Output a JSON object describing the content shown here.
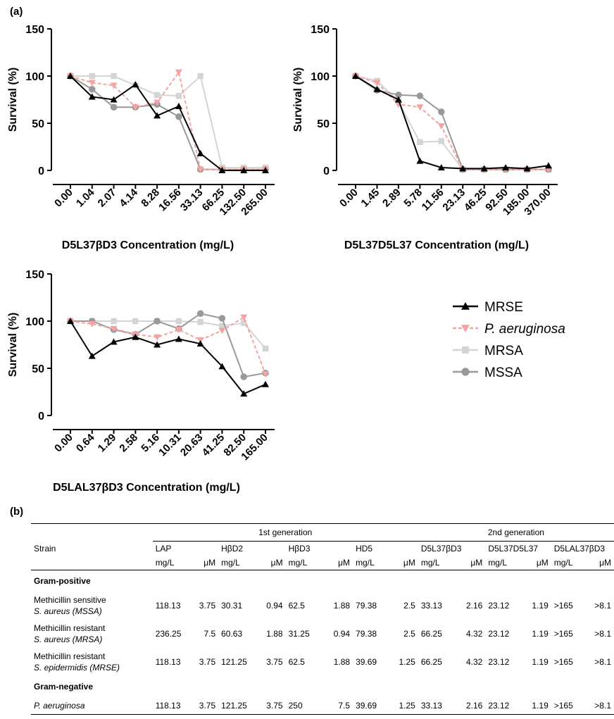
{
  "panel_labels": {
    "a": "(a)",
    "b": "(b)"
  },
  "colors": {
    "MRSE": "#000000",
    "P_aeruginosa": "#f4a3a3",
    "MRSA": "#d4d4d4",
    "MSSA": "#999999"
  },
  "legend": [
    {
      "name": "MRSE",
      "italic": false,
      "marker": "triangle-up",
      "color": "#000000",
      "dash": false
    },
    {
      "name": "P. aeruginosa",
      "italic": true,
      "marker": "triangle-down",
      "color": "#f4a3a3",
      "dash": true
    },
    {
      "name": "MRSA",
      "italic": false,
      "marker": "square",
      "color": "#d4d4d4",
      "dash": false
    },
    {
      "name": "MSSA",
      "italic": false,
      "marker": "circle",
      "color": "#999999",
      "dash": false
    }
  ],
  "chart_data": [
    {
      "type": "line",
      "xlabel": "D5L37βD3 Concentration (mg/L)",
      "ylabel": "Survival (%)",
      "ylim": [
        0,
        150
      ],
      "yticks": [
        "0",
        "50",
        "100",
        "150"
      ],
      "categories": [
        "0.00",
        "1.04",
        "2.07",
        "4.14",
        "8.28",
        "16.56",
        "33.13",
        "66.25",
        "132.50",
        "265.00"
      ],
      "series": [
        {
          "name": "MRSE",
          "values": [
            100,
            78,
            75,
            91,
            58,
            68,
            18,
            0,
            0,
            0
          ]
        },
        {
          "name": "P. aeruginosa",
          "values": [
            100,
            93,
            90,
            67,
            72,
            104,
            1,
            1,
            1,
            1
          ]
        },
        {
          "name": "MRSA",
          "values": [
            100,
            100,
            100,
            90,
            80,
            79,
            100,
            3,
            3,
            3
          ]
        },
        {
          "name": "MSSA",
          "values": [
            100,
            86,
            67,
            67,
            70,
            57,
            1,
            1,
            1,
            1
          ]
        }
      ]
    },
    {
      "type": "line",
      "xlabel": "D5L37D5L37 Concentration (mg/L)",
      "ylabel": "Survival (%)",
      "ylim": [
        0,
        150
      ],
      "yticks": [
        "0",
        "50",
        "100",
        "150"
      ],
      "categories": [
        "0.00",
        "1.45",
        "2.89",
        "5.78",
        "11.56",
        "23.13",
        "46.25",
        "92.50",
        "185.00",
        "370.00"
      ],
      "series": [
        {
          "name": "MRSE",
          "values": [
            100,
            86,
            75,
            10,
            3,
            2,
            2,
            3,
            2,
            5
          ]
        },
        {
          "name": "P. aeruginosa",
          "values": [
            100,
            93,
            70,
            67,
            47,
            1,
            1,
            1,
            1,
            1
          ]
        },
        {
          "name": "MRSA",
          "values": [
            100,
            95,
            73,
            30,
            31,
            1,
            1,
            1,
            1,
            1
          ]
        },
        {
          "name": "MSSA",
          "values": [
            100,
            85,
            80,
            79,
            62,
            1,
            1,
            1,
            1,
            1
          ]
        }
      ]
    },
    {
      "type": "line",
      "xlabel": "D5LAL37βD3 Concentration (mg/L)",
      "ylabel": "Survival (%)",
      "ylim": [
        0,
        150
      ],
      "yticks": [
        "0",
        "50",
        "100",
        "150"
      ],
      "categories": [
        "0.00",
        "0.64",
        "1.29",
        "2.58",
        "5.16",
        "10.31",
        "20.63",
        "41.25",
        "82.50",
        "165.00"
      ],
      "series": [
        {
          "name": "MRSE",
          "values": [
            100,
            63,
            78,
            83,
            75,
            81,
            76,
            52,
            23,
            33
          ]
        },
        {
          "name": "P. aeruginosa",
          "values": [
            100,
            97,
            92,
            86,
            83,
            91,
            80,
            90,
            104,
            44
          ]
        },
        {
          "name": "MRSA",
          "values": [
            100,
            100,
            100,
            100,
            100,
            100,
            99,
            95,
            98,
            71
          ]
        },
        {
          "name": "MSSA",
          "values": [
            100,
            100,
            91,
            86,
            100,
            92,
            108,
            103,
            41,
            45
          ]
        }
      ]
    }
  ],
  "table": {
    "strain_header": "Strain",
    "gen1": "1st generation",
    "gen2": "2nd generation",
    "peptides": [
      "LAP",
      "HβD2",
      "HβD3",
      "HD5",
      "D5L37βD3",
      "D5L37D5L37",
      "D5LAL37βD3"
    ],
    "unit_mg": "mg/L",
    "unit_um": "μM",
    "sections": [
      {
        "title": "Gram-positive",
        "rows": [
          {
            "line1": "Methicillin sensitive",
            "line2": "S. aureus (MSSA)",
            "values": [
              "118.13",
              "3.75",
              "30.31",
              "0.94",
              "62.5",
              "1.88",
              "79.38",
              "2.5",
              "33.13",
              "2.16",
              "23.12",
              "1.19",
              ">165",
              ">8.1"
            ]
          },
          {
            "line1": "Methicillin resistant",
            "line2": "S. aureus (MRSA)",
            "values": [
              "236.25",
              "7.5",
              "60.63",
              "1.88",
              "31.25",
              "0.94",
              "79.38",
              "2.5",
              "66.25",
              "4.32",
              "23.12",
              "1.19",
              ">165",
              ">8.1"
            ]
          },
          {
            "line1": "Methicillin resistant",
            "line2": "S. epidermidis (MRSE)",
            "values": [
              "118.13",
              "3.75",
              "121.25",
              "3.75",
              "62.5",
              "1.88",
              "39.69",
              "1.25",
              "66.25",
              "4.32",
              "23.12",
              "1.19",
              ">165",
              ">8.1"
            ]
          }
        ]
      },
      {
        "title": "Gram-negative",
        "rows": [
          {
            "line1": "P. aeruginosa",
            "line2": "",
            "values": [
              "118.13",
              "3.75",
              "121.25",
              "3.75",
              "250",
              "7.5",
              "39.69",
              "1.25",
              "33.13",
              "2.16",
              "23.12",
              "1.19",
              ">165",
              ">8.1"
            ]
          }
        ]
      }
    ]
  }
}
